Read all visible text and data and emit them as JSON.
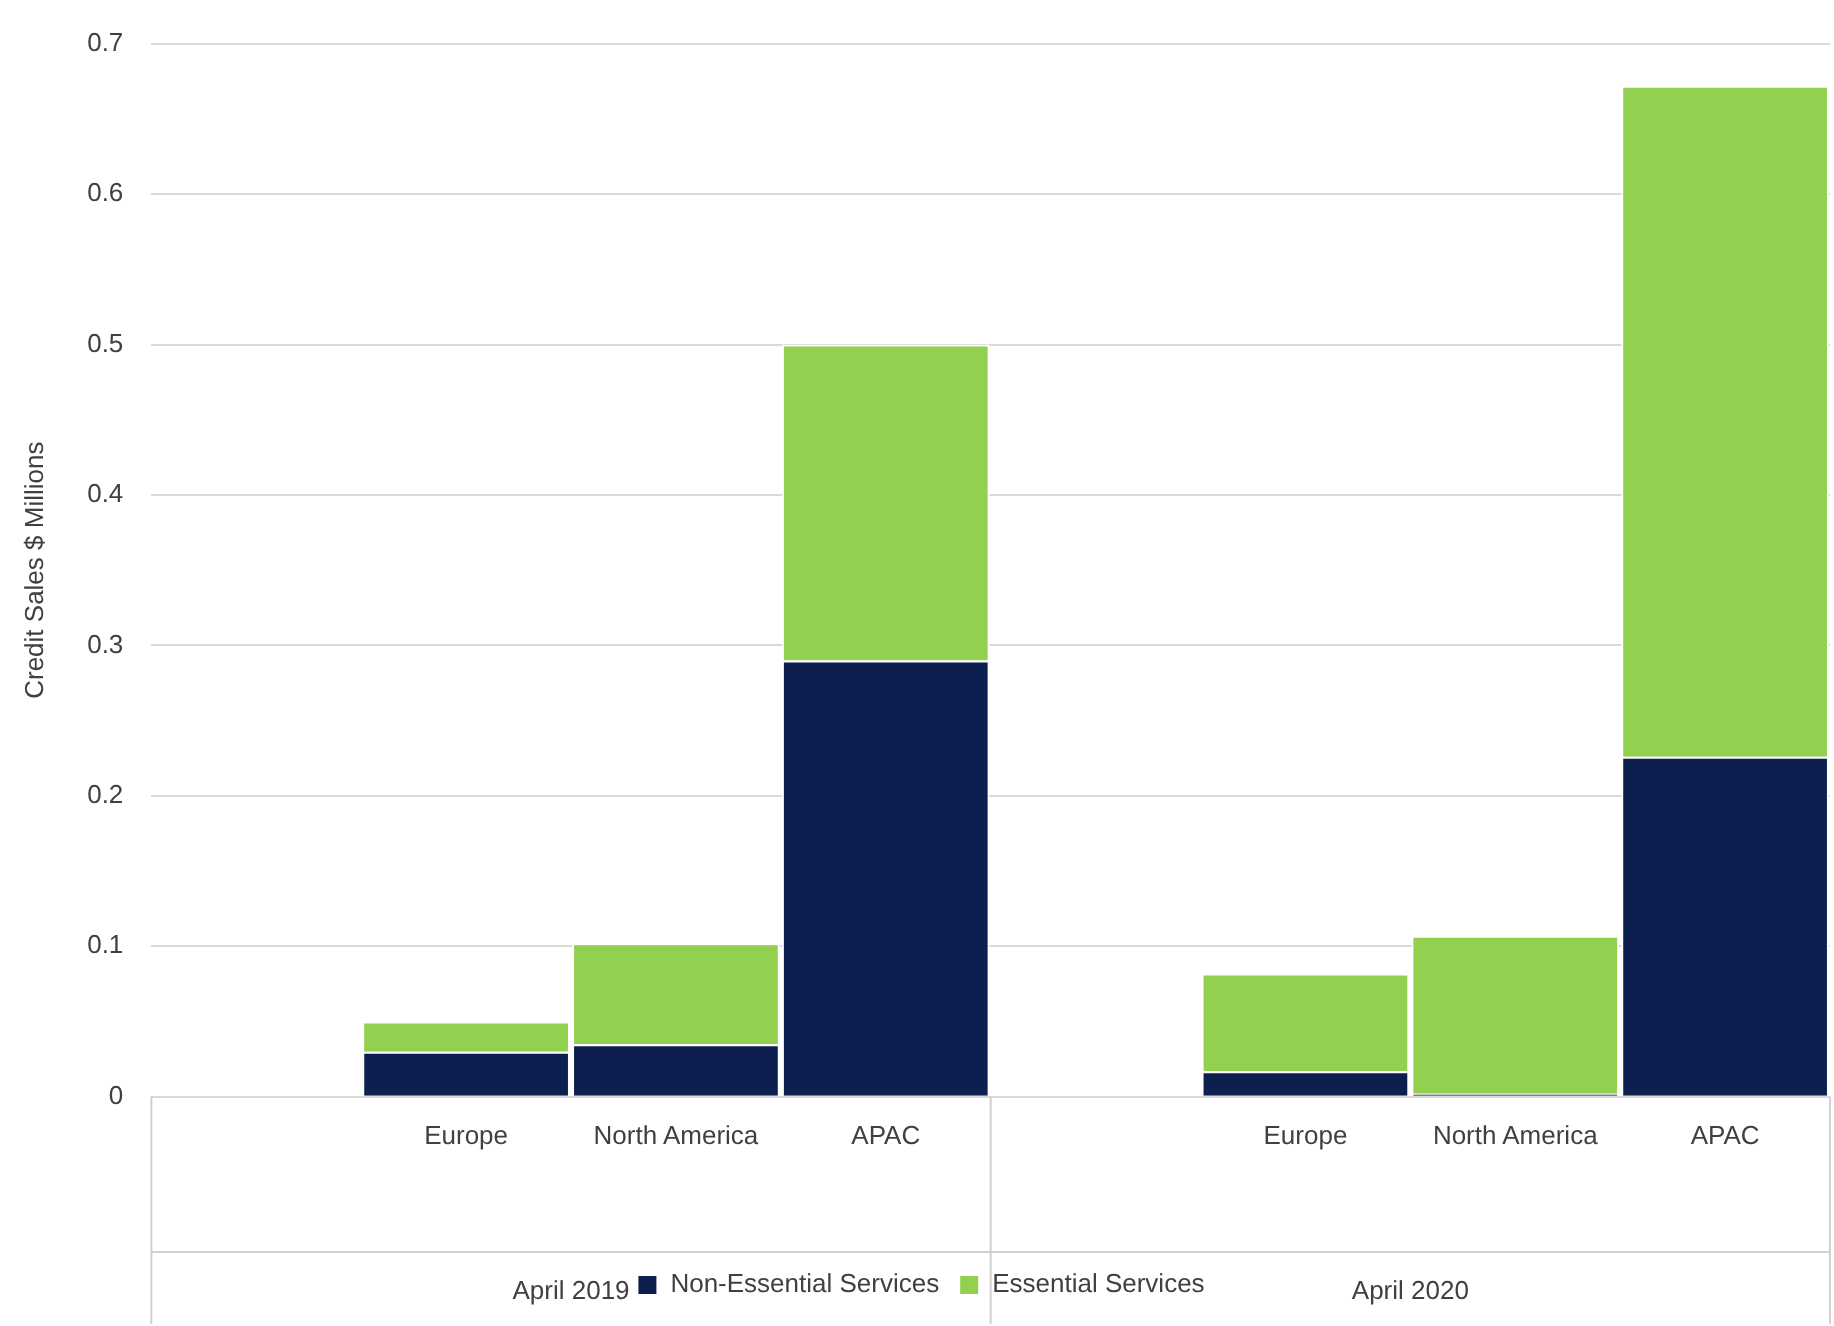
{
  "chart_data": {
    "type": "bar",
    "stacked": true,
    "ylabel": "Credit Sales $ Millions",
    "categories": [
      null,
      "Europe",
      "North America",
      "APAC",
      null,
      "Europe",
      "North America",
      "APAC"
    ],
    "series": [
      {
        "name": "Non-Essential Services",
        "color": "#0d1f4f",
        "values": [
          null,
          0.03,
          0.035,
          0.29,
          null,
          0.017,
          0.002,
          0.226
        ]
      },
      {
        "name": "Essential Services",
        "color": "#92d050",
        "values": [
          null,
          0.02,
          0.067,
          0.21,
          null,
          0.065,
          0.105,
          0.446
        ]
      }
    ],
    "annotations": [
      "April 2019",
      "April 2020"
    ],
    "ylim": [
      0,
      0.7
    ],
    "yticks": [
      0,
      0.1,
      0.2,
      0.3,
      0.4,
      0.5,
      0.6,
      0.7
    ],
    "grid": "y",
    "legend": "bottom"
  }
}
